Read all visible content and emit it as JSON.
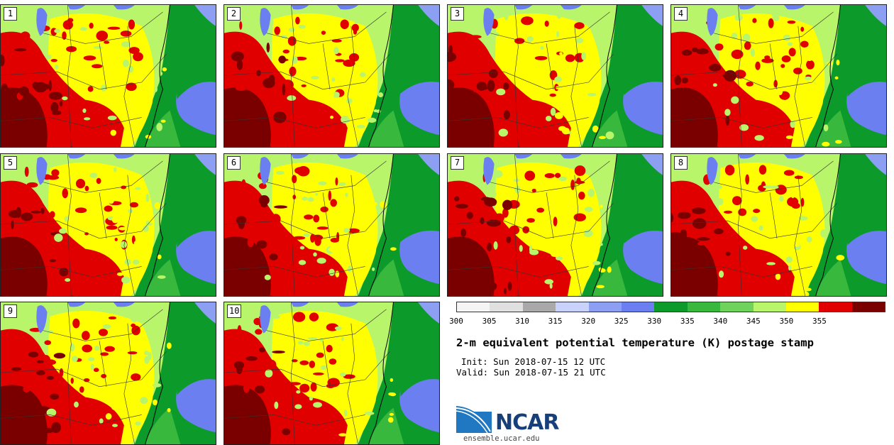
{
  "panels": [
    {
      "label": "1"
    },
    {
      "label": "2"
    },
    {
      "label": "3"
    },
    {
      "label": "4"
    },
    {
      "label": "5"
    },
    {
      "label": "6"
    },
    {
      "label": "7"
    },
    {
      "label": "8"
    },
    {
      "label": "9"
    },
    {
      "label": "10"
    }
  ],
  "colorbar": {
    "colors": [
      "#f5f5f5",
      "#e0e0e0",
      "#a9a9a9",
      "#c8d2fa",
      "#8c9ff2",
      "#6b7ff0",
      "#0c9a2a",
      "#39b83e",
      "#6fd25a",
      "#b9f56b",
      "#ffff00",
      "#e00000",
      "#7a0000"
    ],
    "ticks": [
      "300",
      "305",
      "310",
      "315",
      "320",
      "325",
      "330",
      "335",
      "340",
      "345",
      "350",
      "355"
    ]
  },
  "title": "2-m equivalent potential temperature (K) postage stamp",
  "init": "Init: Sun 2018-07-15 12 UTC",
  "valid": "Valid: Sun 2018-07-15 21 UTC",
  "logo": {
    "text": "NCAR",
    "url": "ensemble.ucar.edu"
  }
}
